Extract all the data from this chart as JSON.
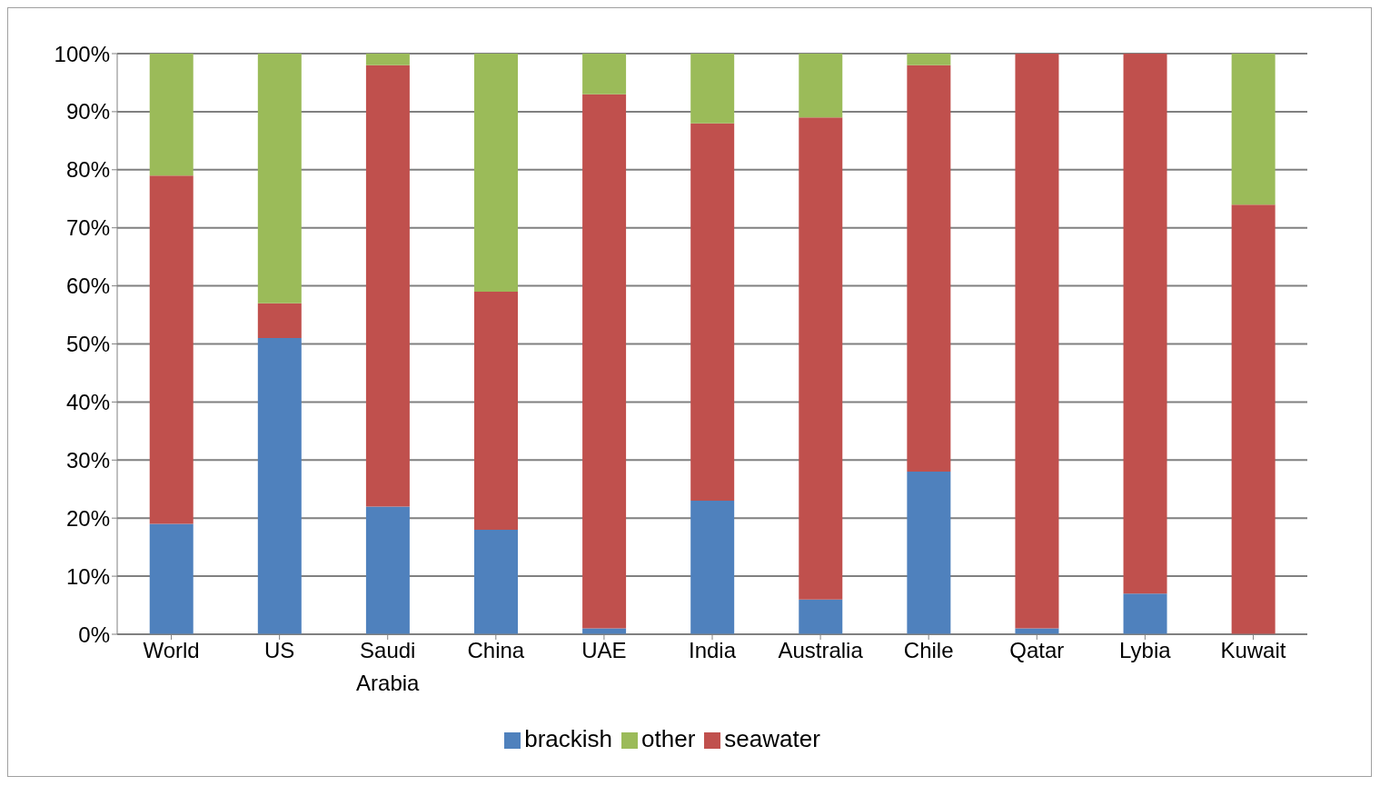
{
  "chart_data": {
    "type": "bar",
    "stacked": true,
    "categories": [
      "World",
      "US",
      "Saudi Arabia",
      "China",
      "UAE",
      "India",
      "Australia",
      "Chile",
      "Qatar",
      "Lybia",
      "Kuwait"
    ],
    "series": [
      {
        "name": "brackish",
        "color": "#4f81bd",
        "values": [
          19,
          51,
          22,
          18,
          1,
          23,
          6,
          28,
          1,
          7,
          0
        ]
      },
      {
        "name": "seawater",
        "color": "#c0504d",
        "values": [
          60,
          6,
          76,
          41,
          92,
          65,
          83,
          70,
          99,
          93,
          74
        ]
      },
      {
        "name": "other",
        "color": "#9bbb59",
        "values": [
          21,
          43,
          2,
          41,
          7,
          12,
          11,
          2,
          0,
          0,
          26
        ]
      }
    ],
    "ylim": [
      0,
      100
    ],
    "yticks": [
      {
        "value": 0,
        "label": "0%"
      },
      {
        "value": 10,
        "label": "10%"
      },
      {
        "value": 20,
        "label": "20%"
      },
      {
        "value": 30,
        "label": "30%"
      },
      {
        "value": 40,
        "label": "40%"
      },
      {
        "value": 50,
        "label": "50%"
      },
      {
        "value": 60,
        "label": "60%"
      },
      {
        "value": 70,
        "label": "70%"
      },
      {
        "value": 80,
        "label": "80%"
      },
      {
        "value": 90,
        "label": "90%"
      },
      {
        "value": 100,
        "label": "100%"
      }
    ],
    "grid": "y",
    "legend": "bottom"
  }
}
